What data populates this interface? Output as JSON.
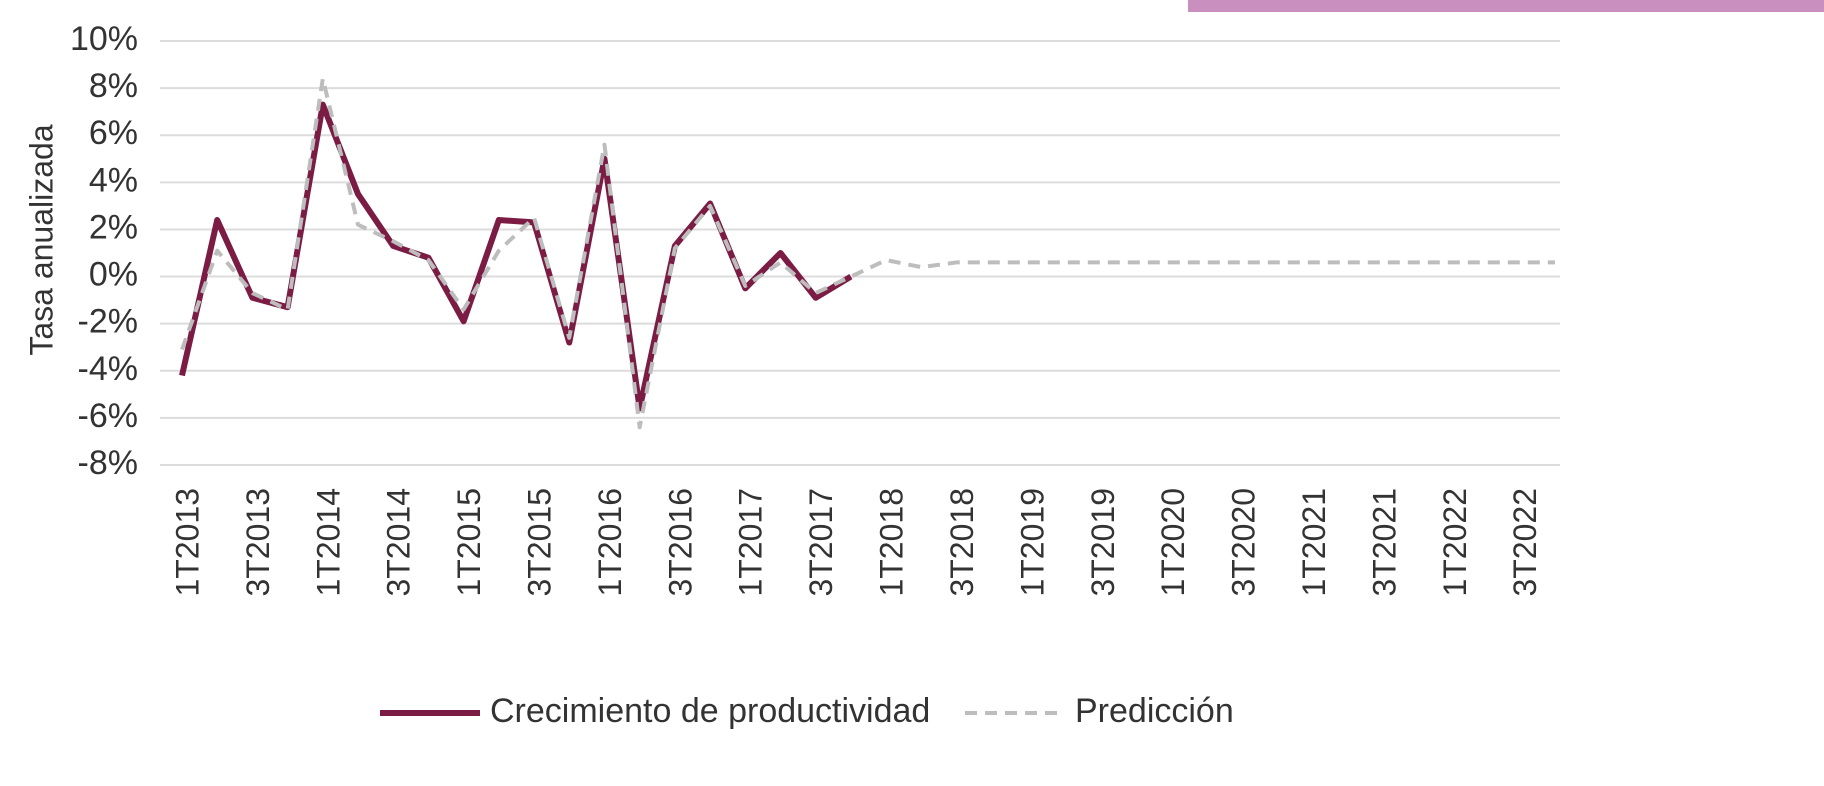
{
  "chart_data": {
    "type": "line",
    "y_label": "Tasa anualizada",
    "categories": [
      "1T2013",
      null,
      "3T2013",
      null,
      "1T2014",
      null,
      "3T2014",
      null,
      "1T2015",
      null,
      "3T2015",
      null,
      "1T2016",
      null,
      "3T2016",
      null,
      "1T2017",
      null,
      "3T2017",
      null,
      "1T2018",
      null,
      "3T2018",
      null,
      "1T2019",
      null,
      "3T2019",
      null,
      "1T2020",
      null,
      "3T2020",
      null,
      "1T2021",
      null,
      "3T2021",
      null,
      "1T2022",
      null,
      "3T2022",
      null
    ],
    "series": [
      {
        "name": "Crecimiento de productividad",
        "color": "#7b1c44",
        "dashed": false,
        "values": [
          -4.2,
          2.4,
          -0.9,
          -1.3,
          7.3,
          3.5,
          1.3,
          0.8,
          -1.9,
          2.4,
          2.3,
          -2.8,
          5.0,
          -5.6,
          1.3,
          3.1,
          -0.5,
          1.0,
          -0.9,
          0.0,
          null,
          null,
          null,
          null,
          null,
          null,
          null,
          null,
          null,
          null,
          null,
          null,
          null,
          null,
          null,
          null,
          null,
          null,
          null,
          null
        ]
      },
      {
        "name": "Predicción",
        "color": "#bdbdbd",
        "dashed": true,
        "values": [
          -3.1,
          1.1,
          -0.7,
          -1.4,
          8.4,
          2.2,
          1.5,
          0.7,
          -1.4,
          1.1,
          2.5,
          -2.6,
          5.6,
          -6.4,
          1.2,
          3.0,
          -0.4,
          0.6,
          -0.7,
          0.0,
          0.7,
          0.4,
          0.6,
          0.6,
          0.6,
          0.6,
          0.6,
          0.6,
          0.6,
          0.6,
          0.6,
          0.6,
          0.6,
          0.6,
          0.6,
          0.6,
          0.6,
          0.6,
          0.6,
          0.6
        ]
      }
    ],
    "ylim": [
      -8,
      10
    ],
    "yticks": [
      {
        "value": -8,
        "label": "-8%"
      },
      {
        "value": -6,
        "label": "-6%"
      },
      {
        "value": -4,
        "label": "-4%"
      },
      {
        "value": -2,
        "label": "-2%"
      },
      {
        "value": 0,
        "label": "0%"
      },
      {
        "value": 2,
        "label": "2%"
      },
      {
        "value": 4,
        "label": "4%"
      },
      {
        "value": 6,
        "label": "6%"
      },
      {
        "value": 8,
        "label": "8%"
      },
      {
        "value": 10,
        "label": "10%"
      }
    ],
    "grid": true,
    "legend": "bottom"
  }
}
